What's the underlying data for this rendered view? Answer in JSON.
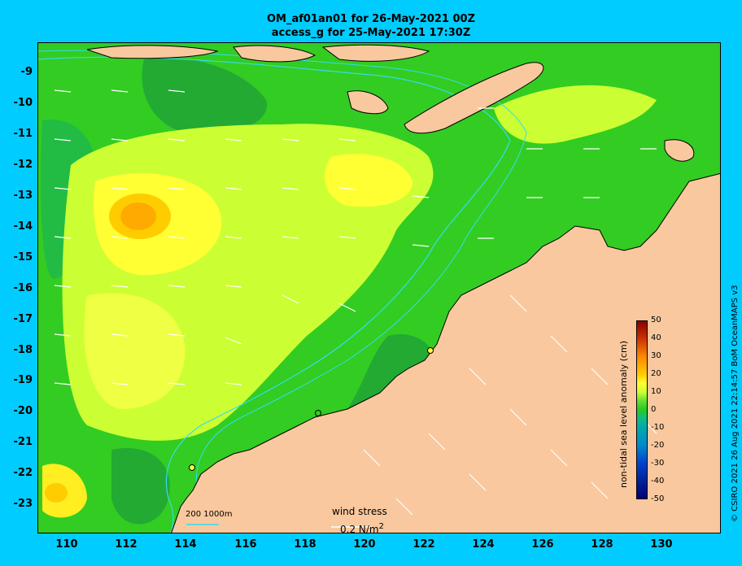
{
  "title_line1": "OM_af01an01 for 26-May-2021 00Z",
  "title_line2": "access_g for 25-May-2021 17:30Z",
  "axes": {
    "x_ticks": [
      "110",
      "112",
      "114",
      "116",
      "118",
      "120",
      "122",
      "124",
      "126",
      "128",
      "130"
    ],
    "y_ticks": [
      "-9",
      "-10",
      "-11",
      "-12",
      "-13",
      "-14",
      "-15",
      "-16",
      "-17",
      "-18",
      "-19",
      "-20",
      "-21",
      "-22",
      "-23"
    ]
  },
  "colorbar": {
    "title": "non-tidal sea level anomaly (cm)",
    "ticks": [
      "50",
      "40",
      "30",
      "20",
      "10",
      "0",
      "-10",
      "-20",
      "-30",
      "-40",
      "-50"
    ]
  },
  "legend": {
    "bathymetry": "200  1000m",
    "wind_stress_label": "wind stress",
    "wind_stress_unit_text": "0.2 N/m",
    "wind_stress_unit_sup": "2"
  },
  "credit": "© CSIRO 2021  26 Aug 2021 22:14:57 BoM OceanMAPS v3",
  "colors": {
    "background": "#00ccff",
    "land": "#f9c89e",
    "sea_base": "#33cc22",
    "contour": "#33ddee"
  }
}
